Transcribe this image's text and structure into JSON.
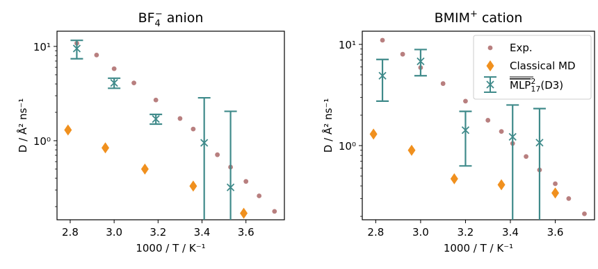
{
  "colors": {
    "exp": "#b87f7f",
    "classical": "#f0901e",
    "mlp": "#3f8a8a",
    "axes": "#000000"
  },
  "chart_data": [
    {
      "type": "scatter",
      "title_main": "BF",
      "title_sub": "4",
      "title_sup": "−",
      "title_rest": " anion",
      "xlabel": "1000 / T / K⁻¹",
      "ylabel": "D / Å² ns⁻¹",
      "x_scale": "linear",
      "y_scale": "log",
      "xlim": [
        2.74,
        3.775
      ],
      "ylim": [
        0.145,
        14.5
      ],
      "xticks": [
        2.8,
        3.0,
        3.2,
        3.4,
        3.6
      ],
      "xtick_labels": [
        "2.8",
        "3.0",
        "3.2",
        "3.4",
        "3.6"
      ],
      "yticks": [
        1,
        10
      ],
      "ytick_labels": [
        "10⁰",
        "10¹"
      ],
      "legend": false,
      "series": [
        {
          "name": "Exp.",
          "marker": "circle",
          "x": [
            2.83,
            2.92,
            3.0,
            3.09,
            3.19,
            3.3,
            3.36,
            3.47,
            3.53,
            3.6,
            3.66,
            3.73
          ],
          "y": [
            10.8,
            8.1,
            5.8,
            4.1,
            2.7,
            1.72,
            1.33,
            0.71,
            0.525,
            0.37,
            0.26,
            0.178
          ]
        },
        {
          "name": "Classical MD",
          "marker": "diamond",
          "x": [
            2.79,
            2.96,
            3.14,
            3.36,
            3.59
          ],
          "y": [
            1.3,
            0.84,
            0.5,
            0.33,
            0.17
          ]
        },
        {
          "name": "MLP",
          "marker": "x-errorbar",
          "x": [
            2.83,
            3.0,
            3.19,
            3.41,
            3.53
          ],
          "y": [
            9.5,
            4.1,
            1.7,
            0.95,
            0.32
          ],
          "yerr_low": [
            7.4,
            3.6,
            1.5,
            0.001,
            0.001
          ],
          "yerr_high": [
            11.6,
            4.6,
            1.9,
            2.85,
            2.05
          ]
        }
      ]
    },
    {
      "type": "scatter",
      "title_main": "BMIM",
      "title_sup": "+",
      "title_rest": " cation",
      "xlabel": "1000 / T / K⁻¹",
      "ylabel": "D / Å² ns⁻¹",
      "x_scale": "linear",
      "y_scale": "log",
      "xlim": [
        2.74,
        3.775
      ],
      "ylim": [
        0.185,
        13.5
      ],
      "xticks": [
        2.8,
        3.0,
        3.2,
        3.4,
        3.6
      ],
      "xtick_labels": [
        "2.8",
        "3.0",
        "3.2",
        "3.4",
        "3.6"
      ],
      "yticks": [
        1,
        10
      ],
      "ytick_labels": [
        "10⁰",
        "10¹"
      ],
      "legend": true,
      "legend_position": "top-right",
      "series": [
        {
          "name": "Exp.",
          "marker": "circle",
          "x": [
            2.83,
            2.92,
            3.0,
            3.1,
            3.2,
            3.3,
            3.36,
            3.41,
            3.47,
            3.53,
            3.6,
            3.66,
            3.73
          ],
          "y": [
            11.0,
            8.0,
            5.9,
            4.1,
            2.75,
            1.78,
            1.38,
            1.05,
            0.78,
            0.575,
            0.42,
            0.3,
            0.212
          ]
        },
        {
          "name": "Classical MD",
          "marker": "diamond",
          "x": [
            2.79,
            2.96,
            3.15,
            3.36,
            3.6
          ],
          "y": [
            1.3,
            0.9,
            0.47,
            0.41,
            0.34
          ]
        },
        {
          "name": "MLP",
          "marker": "x-errorbar",
          "x": [
            2.83,
            3.0,
            3.2,
            3.41,
            3.53
          ],
          "y": [
            4.9,
            6.8,
            1.42,
            1.22,
            1.07
          ],
          "yerr_low": [
            2.75,
            4.9,
            0.63,
            0.001,
            0.001
          ],
          "yerr_high": [
            7.1,
            8.9,
            2.18,
            2.52,
            2.32
          ]
        }
      ]
    }
  ]
}
